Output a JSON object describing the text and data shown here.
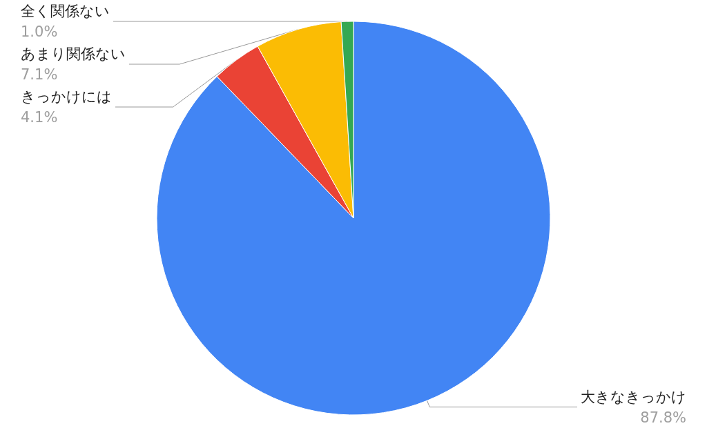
{
  "chart_data": {
    "type": "pie",
    "categories": [
      "大きなきっかけ",
      "きっかけには",
      "あまり関係ない",
      "全く関係ない"
    ],
    "values": [
      87.8,
      4.1,
      7.1,
      1.0
    ],
    "colors": [
      "#4285f4",
      "#ea4335",
      "#fbbc04",
      "#34a853"
    ],
    "value_labels": [
      "87.8%",
      "4.1%",
      "7.1%",
      "1.0%"
    ]
  }
}
